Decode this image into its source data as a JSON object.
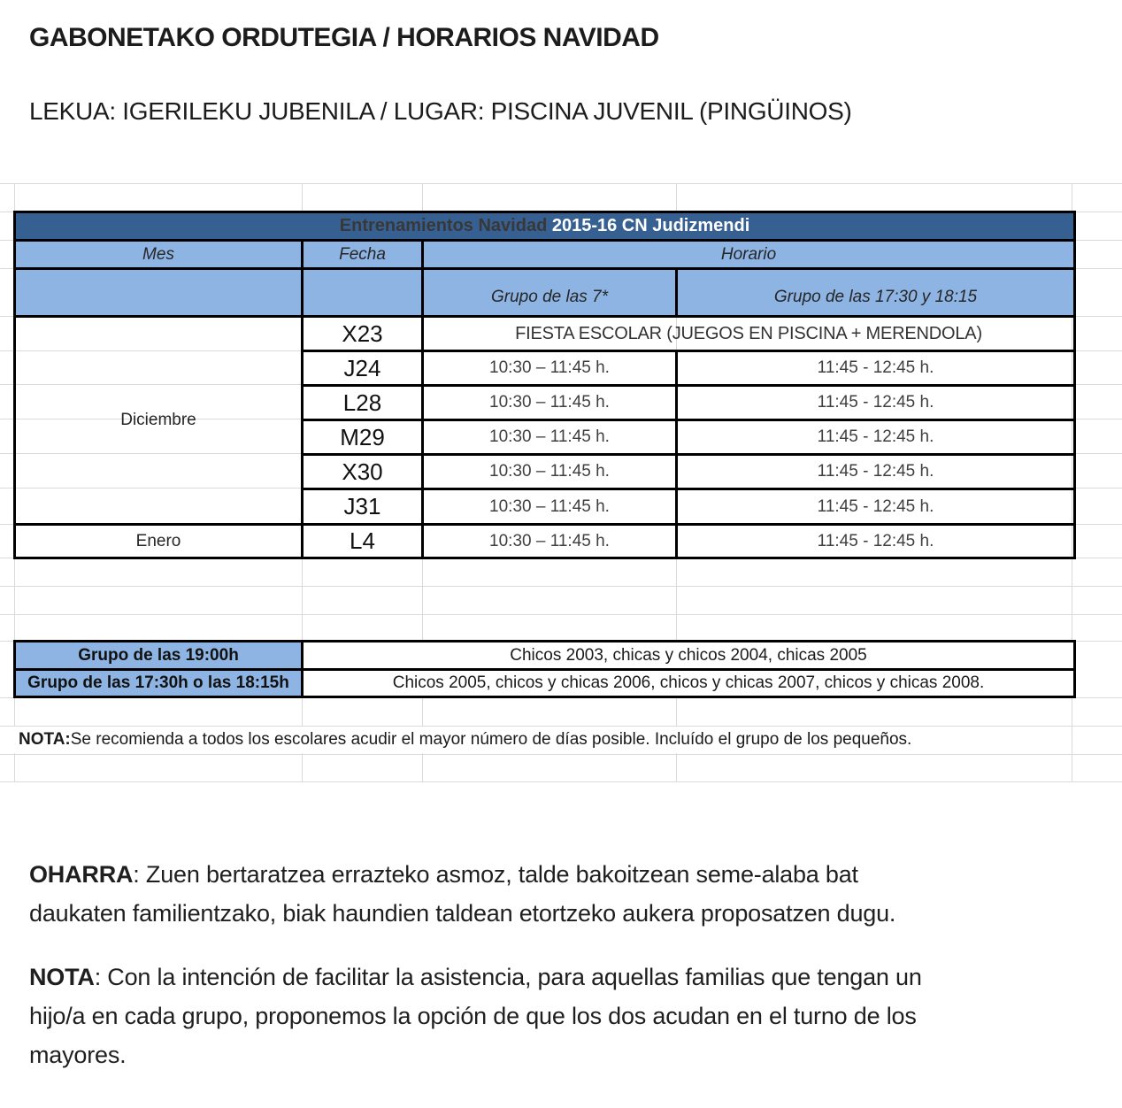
{
  "colors": {
    "header_dark": "#376092",
    "header_light": "#8DB4E2",
    "gridline": "#dadada"
  },
  "doc": {
    "title": "GABONETAKO ORDUTEGIA / HORARIOS NAVIDAD",
    "subtitle": "LEKUA: IGERILEKU JUBENILA / LUGAR: PISCINA JUVENIL (PINGÜINOS)"
  },
  "schedule": {
    "title_dark": "Entrenamientos Navidad ",
    "title_light": "2015-16 CN Judizmendi",
    "col_mes": "Mes",
    "col_fecha": "Fecha",
    "col_horario": "Horario",
    "col_group1": "Grupo de las 7*",
    "col_group2": "Grupo de las 17:30 y 18:15",
    "month1": "Diciembre",
    "month2": "Enero",
    "rows": [
      {
        "fecha": "X23",
        "c1": "FIESTA ESCOLAR (JUEGOS EN PISCINA + MERENDOLA)"
      },
      {
        "fecha": "J24",
        "c1": "10:30 – 11:45 h.",
        "c2": "11:45 - 12:45 h."
      },
      {
        "fecha": "L28",
        "c1": "10:30 – 11:45 h.",
        "c2": "11:45 - 12:45 h."
      },
      {
        "fecha": "M29",
        "c1": "10:30 – 11:45 h.",
        "c2": "11:45 - 12:45 h."
      },
      {
        "fecha": "X30",
        "c1": "10:30 – 11:45 h.",
        "c2": "11:45 - 12:45 h."
      },
      {
        "fecha": "J31",
        "c1": "10:30 – 11:45 h.",
        "c2": "11:45 - 12:45 h."
      },
      {
        "fecha": "L4",
        "c1": "10:30 – 11:45 h.",
        "c2": "11:45 - 12:45 h."
      }
    ]
  },
  "groups": {
    "rows": [
      {
        "label": "Grupo de las 19:00h",
        "value": "Chicos 2003, chicas y chicos 2004, chicas 2005"
      },
      {
        "label": "Grupo de las 17:30h o las 18:15h",
        "value": "Chicos 2005, chicos y chicas 2006, chicos y chicas 2007, chicos y chicas 2008."
      }
    ]
  },
  "nota_row": {
    "label": "NOTA:",
    "text": " Se recomienda a todos los escolares acudir el mayor número de días posible. Incluído el grupo de los pequeños."
  },
  "oharra": {
    "label": "OHARRA",
    "rest1": ": Zuen bertaratzea errazteko asmoz, talde bakoitzean seme-alaba bat",
    "line2": "daukaten familientzako, biak haundien taldean etortzeko aukera proposatzen dugu."
  },
  "nota_bottom": {
    "label": "NOTA",
    "rest1": ": Con la intención de facilitar la asistencia, para aquellas familias que tengan un",
    "line2": "hijo/a en cada grupo, proponemos la opción de que los dos acudan en el turno de los",
    "line3": "mayores."
  }
}
